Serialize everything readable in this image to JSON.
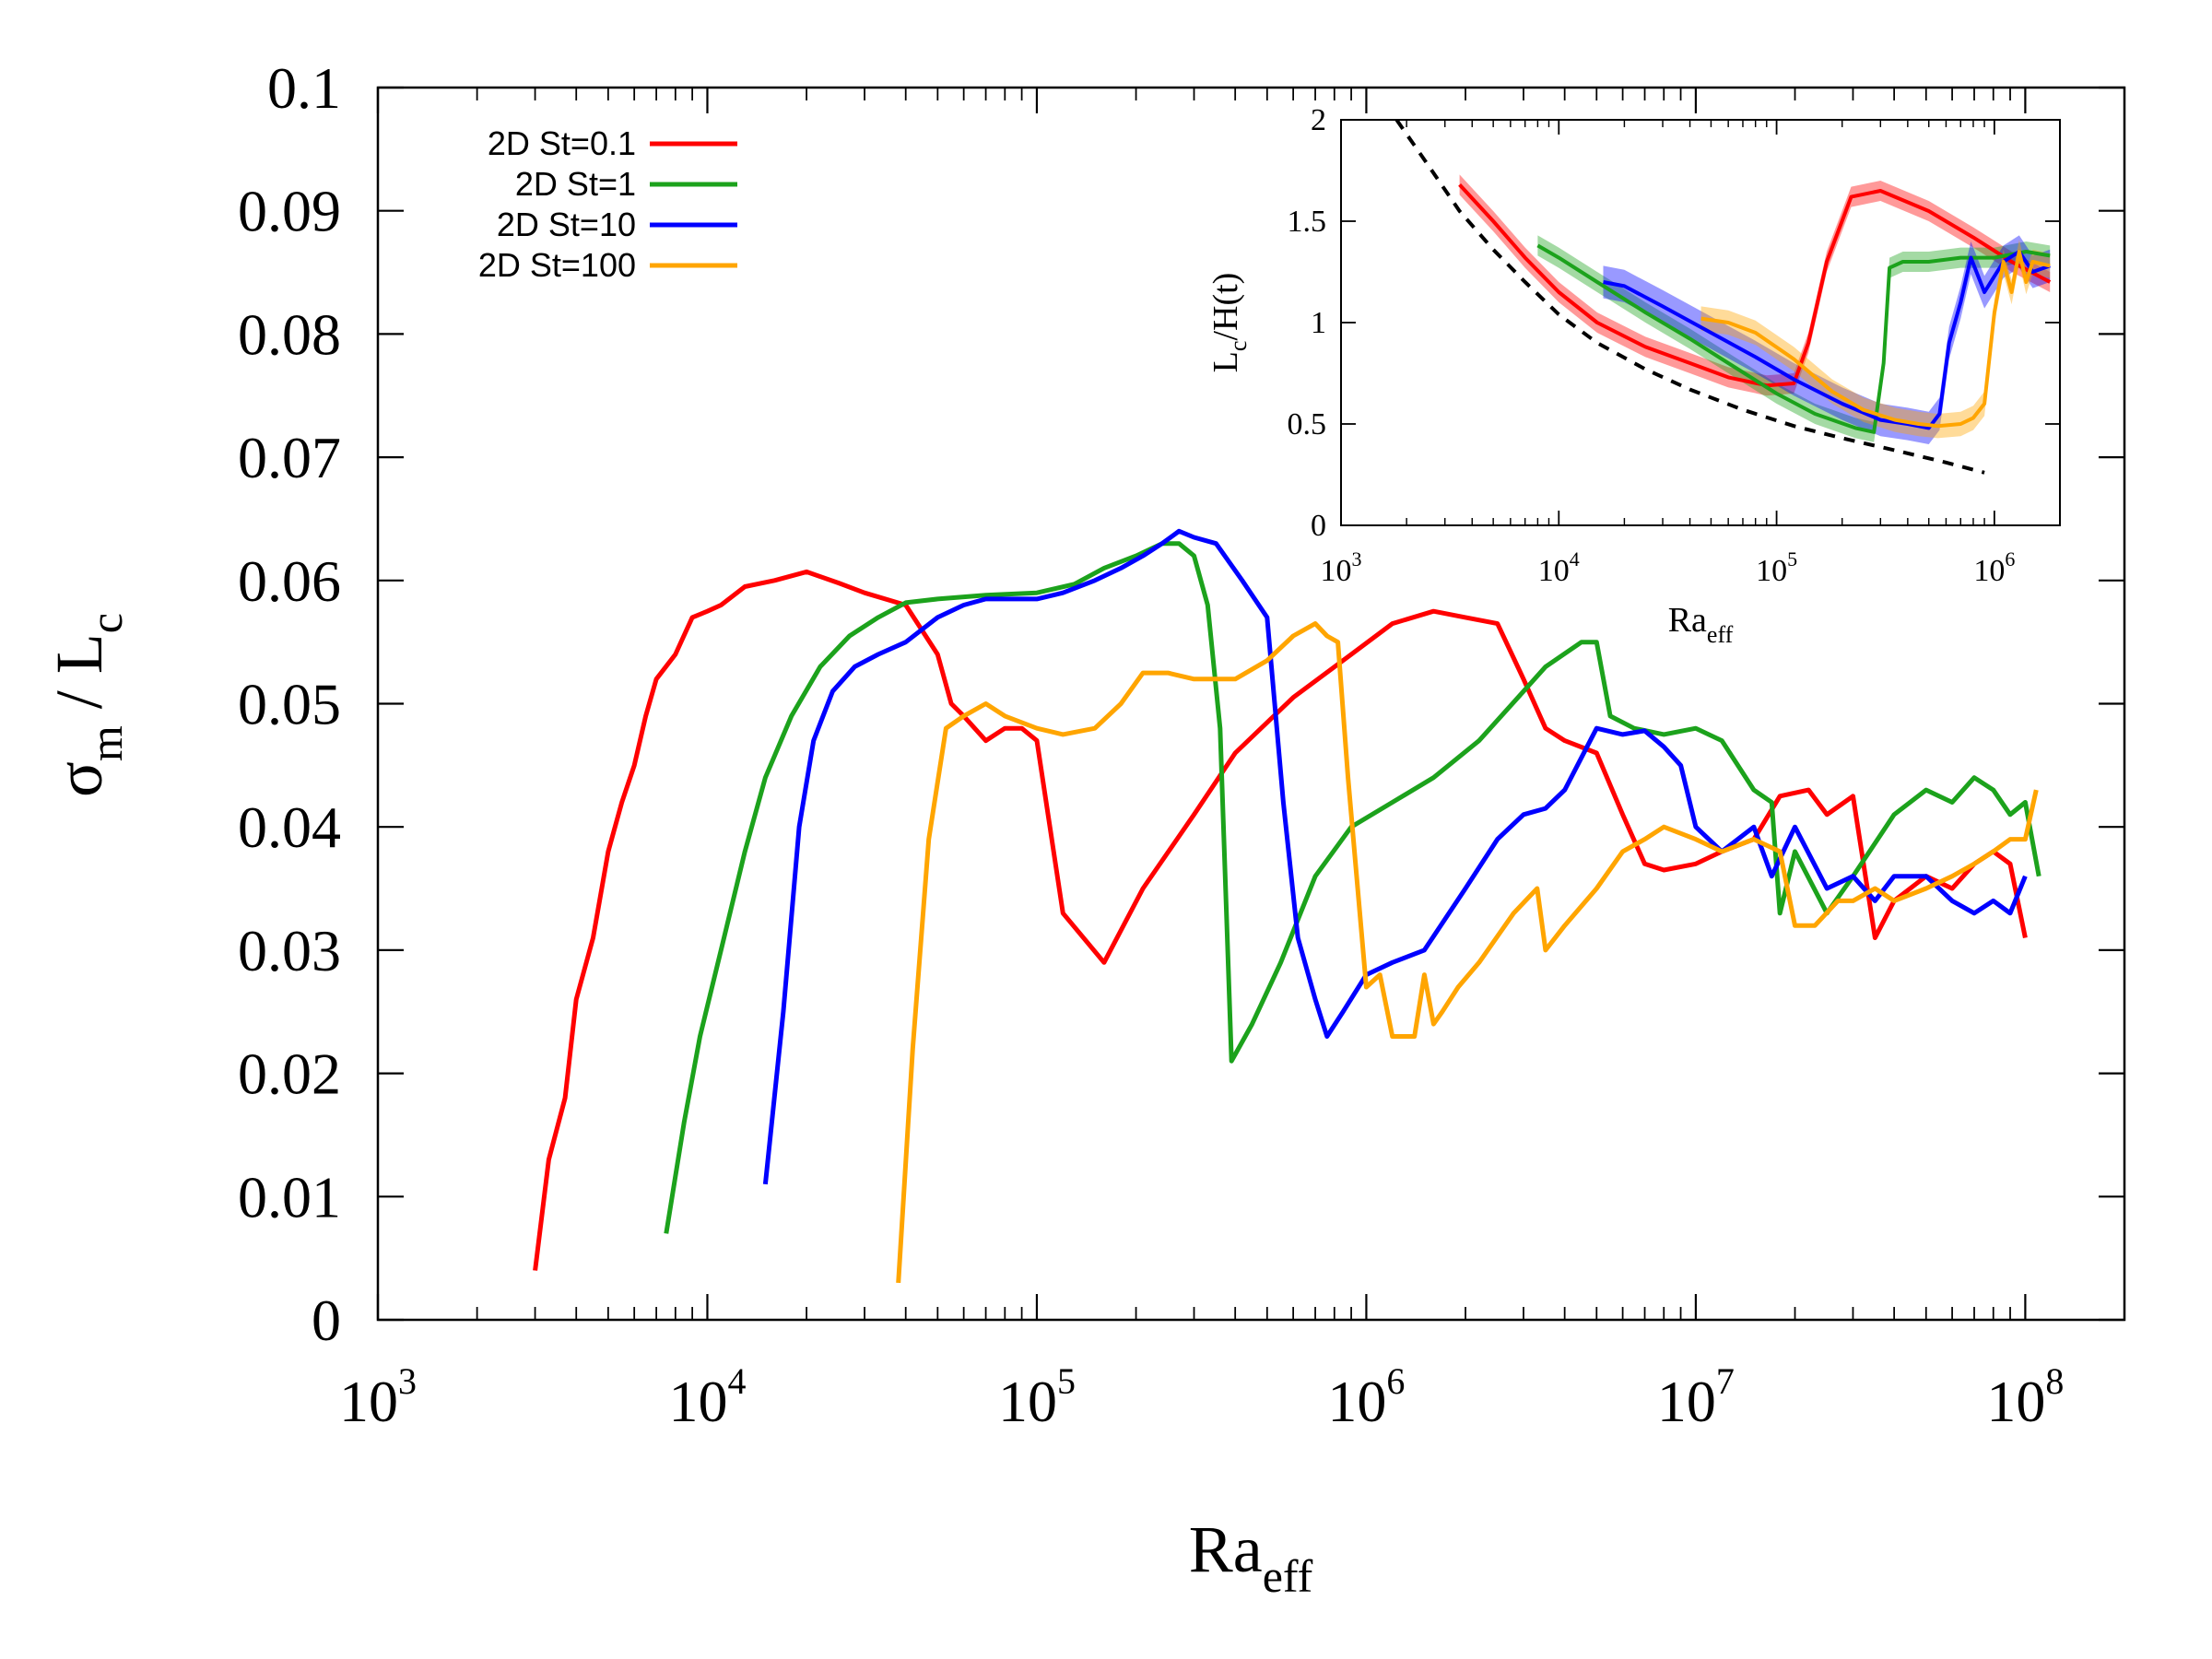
{
  "chart_data": [
    {
      "type": "line",
      "xscale": "log",
      "xlim": [
        1000,
        200000000
      ],
      "ylim": [
        0,
        0.1
      ],
      "xticks": [
        {
          "value": 1000,
          "base": "10",
          "exp": "3"
        },
        {
          "value": 10000,
          "base": "10",
          "exp": "4"
        },
        {
          "value": 100000,
          "base": "10",
          "exp": "5"
        },
        {
          "value": 1000000,
          "base": "10",
          "exp": "6"
        },
        {
          "value": 10000000,
          "base": "10",
          "exp": "7"
        },
        {
          "value": 100000000,
          "base": "10",
          "exp": "8"
        }
      ],
      "yticks": [
        {
          "value": 0,
          "label": "0"
        },
        {
          "value": 0.01,
          "label": "0.01"
        },
        {
          "value": 0.02,
          "label": "0.02"
        },
        {
          "value": 0.03,
          "label": "0.03"
        },
        {
          "value": 0.04,
          "label": "0.04"
        },
        {
          "value": 0.05,
          "label": "0.05"
        },
        {
          "value": 0.06,
          "label": "0.06"
        },
        {
          "value": 0.07,
          "label": "0.07"
        },
        {
          "value": 0.08,
          "label": "0.08"
        },
        {
          "value": 0.09,
          "label": "0.09"
        },
        {
          "value": 0.1,
          "label": "0.1"
        }
      ],
      "xlabel": {
        "main": "Ra",
        "sub": "eff"
      },
      "ylabel": {
        "part1": "σ",
        "sub1": "m",
        "part2": " / L",
        "sub2": "c"
      },
      "legend_position": "top-left",
      "series": [
        {
          "name": "2D St=0.1",
          "color": "#ff0000",
          "x": [
            3000,
            3300,
            3700,
            4000,
            4500,
            5000,
            5500,
            6000,
            6500,
            7000,
            8000,
            9000,
            10000,
            11000,
            13000,
            16000,
            20000,
            25000,
            30000,
            40000,
            50000,
            55000,
            60000,
            70000,
            80000,
            90000,
            100000,
            120000,
            160000,
            210000,
            300000,
            400000,
            600000,
            900000,
            1200000,
            1600000,
            2000000,
            2500000,
            3000000,
            3500000,
            4000000,
            5000000,
            6000000,
            7000000,
            8000000,
            10000000,
            12000000,
            15000000,
            18000000,
            22000000,
            25000000,
            30000000,
            35000000,
            40000000,
            50000000,
            60000000,
            70000000,
            80000000,
            90000000,
            100000000
          ],
          "y": [
            0.004,
            0.013,
            0.018,
            0.026,
            0.031,
            0.038,
            0.042,
            0.045,
            0.049,
            0.052,
            0.054,
            0.057,
            0.0575,
            0.058,
            0.0595,
            0.06,
            0.0607,
            0.0598,
            0.059,
            0.058,
            0.054,
            0.05,
            0.049,
            0.047,
            0.048,
            0.048,
            0.047,
            0.033,
            0.029,
            0.035,
            0.041,
            0.046,
            0.0505,
            0.054,
            0.0565,
            0.0575,
            0.057,
            0.0565,
            0.052,
            0.048,
            0.047,
            0.046,
            0.041,
            0.037,
            0.0365,
            0.037,
            0.038,
            0.039,
            0.0425,
            0.043,
            0.041,
            0.0425,
            0.031,
            0.034,
            0.036,
            0.035,
            0.037,
            0.038,
            0.037,
            0.031
          ]
        },
        {
          "name": "2D St=1",
          "color": "#1ca21c",
          "x": [
            7500,
            8500,
            9500,
            11000,
            13000,
            15000,
            18000,
            22000,
            27000,
            33000,
            40000,
            50000,
            70000,
            100000,
            130000,
            160000,
            200000,
            240000,
            270000,
            300000,
            330000,
            360000,
            390000,
            450000,
            550000,
            700000,
            900000,
            1200000,
            1600000,
            2200000,
            3000000,
            3500000,
            4500000,
            5000000,
            5500000,
            6500000,
            8000000,
            10000000,
            12000000,
            15000000,
            17000000,
            18000000,
            20000000,
            25000000,
            30000000,
            40000000,
            50000000,
            60000000,
            70000000,
            80000000,
            90000000,
            100000000,
            110000000
          ],
          "y": [
            0.007,
            0.016,
            0.023,
            0.03,
            0.038,
            0.044,
            0.049,
            0.053,
            0.0555,
            0.057,
            0.0582,
            0.0585,
            0.0588,
            0.059,
            0.0597,
            0.061,
            0.062,
            0.063,
            0.063,
            0.062,
            0.058,
            0.048,
            0.021,
            0.024,
            0.029,
            0.036,
            0.04,
            0.042,
            0.044,
            0.047,
            0.051,
            0.053,
            0.055,
            0.055,
            0.049,
            0.048,
            0.0475,
            0.048,
            0.047,
            0.043,
            0.042,
            0.033,
            0.038,
            0.033,
            0.036,
            0.041,
            0.043,
            0.042,
            0.044,
            0.043,
            0.041,
            0.042,
            0.036
          ]
        },
        {
          "name": "2D St=10",
          "color": "#0000ff",
          "x": [
            15000,
            17000,
            19000,
            21000,
            24000,
            28000,
            33000,
            40000,
            50000,
            60000,
            70000,
            85000,
            100000,
            120000,
            150000,
            180000,
            210000,
            240000,
            270000,
            300000,
            350000,
            420000,
            500000,
            560000,
            620000,
            700000,
            760000,
            850000,
            1000000,
            1200000,
            1500000,
            2000000,
            2500000,
            3000000,
            3500000,
            4000000,
            5000000,
            6000000,
            7000000,
            8000000,
            9000000,
            10000000,
            12000000,
            15000000,
            17000000,
            20000000,
            25000000,
            30000000,
            35000000,
            40000000,
            50000000,
            60000000,
            70000000,
            80000000,
            90000000,
            100000000
          ],
          "y": [
            0.011,
            0.025,
            0.04,
            0.047,
            0.051,
            0.053,
            0.054,
            0.055,
            0.057,
            0.058,
            0.0585,
            0.0585,
            0.0585,
            0.059,
            0.06,
            0.061,
            0.062,
            0.063,
            0.064,
            0.0635,
            0.063,
            0.06,
            0.057,
            0.042,
            0.031,
            0.026,
            0.023,
            0.025,
            0.028,
            0.029,
            0.03,
            0.035,
            0.039,
            0.041,
            0.0415,
            0.043,
            0.048,
            0.0475,
            0.0478,
            0.0465,
            0.045,
            0.04,
            0.038,
            0.04,
            0.036,
            0.04,
            0.035,
            0.036,
            0.034,
            0.036,
            0.036,
            0.034,
            0.033,
            0.034,
            0.033,
            0.036
          ]
        },
        {
          "name": "2D St=100",
          "color": "#ffa500",
          "x": [
            38000,
            42000,
            47000,
            53000,
            60000,
            70000,
            80000,
            100000,
            120000,
            150000,
            180000,
            210000,
            250000,
            300000,
            350000,
            400000,
            500000,
            600000,
            700000,
            760000,
            820000,
            880000,
            1000000,
            1100000,
            1200000,
            1400000,
            1500000,
            1600000,
            1700000,
            1900000,
            2200000,
            2800000,
            3300000,
            3500000,
            4000000,
            5000000,
            6000000,
            7000000,
            8000000,
            10000000,
            12000000,
            15000000,
            18000000,
            20000000,
            23000000,
            27000000,
            30000000,
            35000000,
            40000000,
            50000000,
            60000000,
            70000000,
            80000000,
            90000000,
            100000000,
            108000000
          ],
          "y": [
            0.003,
            0.022,
            0.039,
            0.048,
            0.049,
            0.05,
            0.049,
            0.048,
            0.0475,
            0.048,
            0.05,
            0.0525,
            0.0525,
            0.052,
            0.052,
            0.052,
            0.0535,
            0.0555,
            0.0565,
            0.0555,
            0.055,
            0.044,
            0.027,
            0.028,
            0.023,
            0.023,
            0.028,
            0.024,
            0.025,
            0.027,
            0.029,
            0.033,
            0.035,
            0.03,
            0.032,
            0.035,
            0.038,
            0.039,
            0.04,
            0.039,
            0.038,
            0.039,
            0.038,
            0.032,
            0.032,
            0.034,
            0.034,
            0.035,
            0.034,
            0.035,
            0.036,
            0.037,
            0.038,
            0.039,
            0.039,
            0.043
          ]
        }
      ]
    },
    {
      "type": "line",
      "inset": true,
      "xscale": "log",
      "xlim": [
        1000,
        2000000
      ],
      "ylim": [
        0,
        2
      ],
      "xticks": [
        {
          "value": 1000,
          "base": "10",
          "exp": "3"
        },
        {
          "value": 10000,
          "base": "10",
          "exp": "4"
        },
        {
          "value": 100000,
          "base": "10",
          "exp": "5"
        },
        {
          "value": 1000000,
          "base": "10",
          "exp": "6"
        }
      ],
      "yticks": [
        {
          "value": 0,
          "label": "0"
        },
        {
          "value": 0.5,
          "label": "0.5"
        },
        {
          "value": 1,
          "label": "1"
        },
        {
          "value": 1.5,
          "label": "1.5"
        },
        {
          "value": 2,
          "label": "2"
        }
      ],
      "xlabel": {
        "main": "Ra",
        "sub": "eff"
      },
      "ylabel": {
        "part1": "L",
        "sub1": "c",
        "part2": "/H(t)"
      },
      "reference_curve": {
        "style": "dashed",
        "color": "#000000",
        "x": [
          1800,
          2500,
          3500,
          5000,
          7000,
          10000,
          15000,
          25000,
          40000,
          70000,
          120000,
          200000,
          350000,
          600000,
          900000
        ],
        "y": [
          2.0,
          1.78,
          1.55,
          1.36,
          1.2,
          1.04,
          0.9,
          0.77,
          0.67,
          0.57,
          0.49,
          0.43,
          0.37,
          0.31,
          0.26
        ]
      },
      "series": [
        {
          "name": "2D St=0.1",
          "color": "#ff0000",
          "band": 0.05,
          "x": [
            3500,
            5000,
            7000,
            10000,
            15000,
            25000,
            40000,
            60000,
            90000,
            120000,
            140000,
            170000,
            220000,
            300000,
            500000,
            800000,
            1200000,
            1800000
          ],
          "y": [
            1.68,
            1.5,
            1.32,
            1.15,
            1.0,
            0.88,
            0.8,
            0.73,
            0.69,
            0.7,
            0.9,
            1.3,
            1.62,
            1.65,
            1.55,
            1.42,
            1.3,
            1.2
          ]
        },
        {
          "name": "2D St=1",
          "color": "#1ca21c",
          "band": 0.05,
          "x": [
            8000,
            10000,
            15000,
            25000,
            40000,
            60000,
            100000,
            150000,
            230000,
            280000,
            310000,
            330000,
            380000,
            500000,
            700000,
            1000000,
            1400000,
            1800000
          ],
          "y": [
            1.38,
            1.32,
            1.2,
            1.05,
            0.92,
            0.8,
            0.65,
            0.55,
            0.48,
            0.46,
            0.8,
            1.27,
            1.3,
            1.3,
            1.32,
            1.32,
            1.35,
            1.33
          ]
        },
        {
          "name": "2D St=10",
          "color": "#0000ff",
          "band": 0.08,
          "x": [
            16000,
            20000,
            30000,
            50000,
            80000,
            120000,
            200000,
            300000,
            400000,
            500000,
            560000,
            620000,
            700000,
            780000,
            900000,
            1100000,
            1300000,
            1500000,
            1800000
          ],
          "y": [
            1.2,
            1.18,
            1.08,
            0.95,
            0.83,
            0.72,
            0.6,
            0.52,
            0.5,
            0.48,
            0.55,
            0.9,
            1.1,
            1.32,
            1.15,
            1.3,
            1.35,
            1.25,
            1.28
          ]
        },
        {
          "name": "2D St=100",
          "color": "#ffa500",
          "band": 0.06,
          "x": [
            45000,
            60000,
            80000,
            120000,
            180000,
            250000,
            350000,
            450000,
            550000,
            700000,
            800000,
            900000,
            1000000,
            1100000,
            1200000,
            1300000,
            1400000,
            1500000,
            1800000
          ],
          "y": [
            1.02,
            1.0,
            0.95,
            0.82,
            0.66,
            0.57,
            0.52,
            0.5,
            0.49,
            0.5,
            0.53,
            0.6,
            1.05,
            1.3,
            1.15,
            1.35,
            1.2,
            1.3,
            1.28
          ]
        }
      ]
    }
  ]
}
